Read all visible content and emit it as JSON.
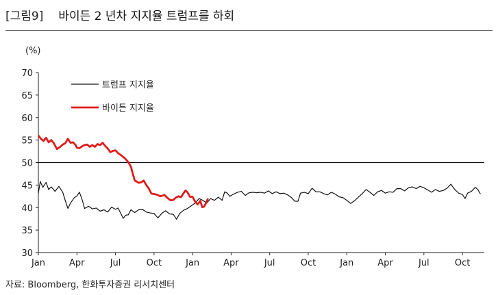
{
  "figure": {
    "label": "[그림9]",
    "title": "바이든 2 년차 지지율 트럼프를 하회",
    "source": "자료: Bloomberg, 한화투자증권 리서치센터"
  },
  "chart_data": {
    "type": "line",
    "unit_label": "(%)",
    "ylim": [
      30,
      70
    ],
    "yticks": [
      30,
      35,
      40,
      45,
      50,
      55,
      60,
      65,
      70
    ],
    "x_tick_labels": [
      "Jan",
      "Apr",
      "Jul",
      "Oct",
      "Jan",
      "Apr",
      "Jul",
      "Oct",
      "Jan",
      "Apr",
      "Jul",
      "Oct"
    ],
    "x_tick_month_index": [
      0,
      3,
      6,
      9,
      12,
      15,
      18,
      21,
      24,
      27,
      30,
      33
    ],
    "xlim_month_index": [
      0,
      34.7
    ],
    "reference_line": 50,
    "legend_position": "upper-left",
    "grid": false,
    "series": [
      {
        "name": "트럼프 지지율",
        "color": "#111111",
        "points": [
          [
            0,
            43.2
          ],
          [
            0.15,
            45.8
          ],
          [
            0.35,
            44.5
          ],
          [
            0.6,
            45.6
          ],
          [
            0.8,
            44.0
          ],
          [
            1.0,
            44.6
          ],
          [
            1.3,
            43.6
          ],
          [
            1.6,
            44.7
          ],
          [
            1.9,
            43.4
          ],
          [
            2.1,
            41.5
          ],
          [
            2.3,
            39.8
          ],
          [
            2.5,
            41.0
          ],
          [
            2.8,
            42.2
          ],
          [
            3.0,
            42.6
          ],
          [
            3.2,
            43.4
          ],
          [
            3.4,
            41.8
          ],
          [
            3.6,
            39.8
          ],
          [
            3.9,
            40.3
          ],
          [
            4.2,
            39.7
          ],
          [
            4.5,
            39.9
          ],
          [
            4.8,
            39.2
          ],
          [
            5.1,
            39.5
          ],
          [
            5.4,
            39.0
          ],
          [
            5.7,
            40.1
          ],
          [
            6.0,
            39.6
          ],
          [
            6.2,
            39.9
          ],
          [
            6.45,
            38.5
          ],
          [
            6.6,
            37.6
          ],
          [
            6.8,
            38.3
          ],
          [
            7.0,
            38.4
          ],
          [
            7.2,
            39.5
          ],
          [
            7.5,
            38.9
          ],
          [
            7.8,
            39.5
          ],
          [
            8.1,
            39.6
          ],
          [
            8.4,
            39.0
          ],
          [
            8.7,
            38.8
          ],
          [
            9.0,
            38.7
          ],
          [
            9.3,
            37.7
          ],
          [
            9.6,
            38.7
          ],
          [
            9.9,
            39.3
          ],
          [
            10.2,
            38.6
          ],
          [
            10.5,
            38.5
          ],
          [
            10.75,
            37.4
          ],
          [
            11.0,
            38.7
          ],
          [
            11.3,
            39.4
          ],
          [
            11.6,
            39.8
          ],
          [
            11.9,
            40.4
          ],
          [
            12.2,
            41.0
          ],
          [
            12.5,
            42.0
          ],
          [
            12.8,
            41.6
          ],
          [
            13.1,
            41.0
          ],
          [
            13.4,
            42.0
          ],
          [
            13.7,
            41.6
          ],
          [
            14.0,
            42.3
          ],
          [
            14.3,
            41.6
          ],
          [
            14.5,
            43.5
          ],
          [
            14.7,
            43.2
          ],
          [
            14.9,
            42.5
          ],
          [
            15.2,
            43.0
          ],
          [
            15.5,
            43.4
          ],
          [
            15.8,
            43.6
          ],
          [
            16.1,
            42.7
          ],
          [
            16.4,
            43.3
          ],
          [
            16.7,
            43.4
          ],
          [
            17.0,
            43.3
          ],
          [
            17.3,
            43.4
          ],
          [
            17.6,
            43.2
          ],
          [
            17.9,
            43.7
          ],
          [
            18.2,
            43.1
          ],
          [
            18.5,
            43.5
          ],
          [
            18.8,
            43.1
          ],
          [
            19.1,
            43.2
          ],
          [
            19.4,
            42.8
          ],
          [
            19.7,
            42.2
          ],
          [
            19.95,
            41.4
          ],
          [
            20.2,
            41.4
          ],
          [
            20.4,
            43.2
          ],
          [
            20.7,
            43.4
          ],
          [
            21.0,
            43.1
          ],
          [
            21.3,
            44.3
          ],
          [
            21.6,
            43.5
          ],
          [
            21.9,
            43.5
          ],
          [
            22.2,
            43.1
          ],
          [
            22.5,
            42.8
          ],
          [
            22.8,
            43.4
          ],
          [
            23.1,
            43.0
          ],
          [
            23.4,
            42.4
          ],
          [
            23.7,
            42.2
          ],
          [
            24.0,
            41.6
          ],
          [
            24.3,
            40.9
          ],
          [
            24.6,
            41.5
          ],
          [
            24.9,
            42.3
          ],
          [
            25.2,
            43.1
          ],
          [
            25.5,
            44.0
          ],
          [
            25.8,
            43.4
          ],
          [
            26.1,
            42.7
          ],
          [
            26.4,
            43.5
          ],
          [
            26.7,
            43.8
          ],
          [
            27.0,
            43.2
          ],
          [
            27.3,
            43.5
          ],
          [
            27.6,
            43.4
          ],
          [
            27.9,
            44.2
          ],
          [
            28.2,
            44.2
          ],
          [
            28.5,
            43.7
          ],
          [
            28.8,
            44.4
          ],
          [
            29.1,
            44.6
          ],
          [
            29.4,
            44.2
          ],
          [
            29.7,
            44.7
          ],
          [
            30.0,
            44.4
          ],
          [
            30.3,
            43.9
          ],
          [
            30.6,
            43.4
          ],
          [
            30.9,
            44.0
          ],
          [
            31.2,
            43.6
          ],
          [
            31.5,
            43.8
          ],
          [
            31.8,
            44.3
          ],
          [
            32.1,
            45.2
          ],
          [
            32.4,
            44.0
          ],
          [
            32.7,
            43.2
          ],
          [
            33.0,
            42.9
          ],
          [
            33.2,
            42.0
          ],
          [
            33.4,
            43.2
          ],
          [
            33.7,
            43.6
          ],
          [
            34.0,
            44.5
          ],
          [
            34.2,
            44.0
          ],
          [
            34.4,
            43.0
          ]
        ]
      },
      {
        "name": "바이든 지지율",
        "color": "#e01b1b",
        "points": [
          [
            0,
            56.0
          ],
          [
            0.2,
            55.3
          ],
          [
            0.4,
            54.8
          ],
          [
            0.6,
            55.5
          ],
          [
            0.8,
            54.5
          ],
          [
            1.0,
            55.0
          ],
          [
            1.2,
            54.3
          ],
          [
            1.45,
            53.0
          ],
          [
            1.7,
            53.5
          ],
          [
            1.9,
            54.0
          ],
          [
            2.1,
            54.3
          ],
          [
            2.3,
            55.3
          ],
          [
            2.5,
            54.4
          ],
          [
            2.7,
            54.5
          ],
          [
            2.9,
            53.9
          ],
          [
            3.0,
            53.3
          ],
          [
            3.2,
            53.2
          ],
          [
            3.4,
            53.6
          ],
          [
            3.6,
            53.9
          ],
          [
            3.8,
            54.0
          ],
          [
            4.0,
            53.5
          ],
          [
            4.2,
            53.9
          ],
          [
            4.4,
            53.5
          ],
          [
            4.6,
            54.1
          ],
          [
            4.8,
            53.9
          ],
          [
            5.0,
            54.4
          ],
          [
            5.2,
            53.7
          ],
          [
            5.4,
            53.1
          ],
          [
            5.6,
            52.3
          ],
          [
            5.8,
            52.6
          ],
          [
            6.0,
            52.7
          ],
          [
            6.2,
            52.1
          ],
          [
            6.5,
            51.5
          ],
          [
            6.75,
            50.9
          ],
          [
            7.0,
            50.1
          ],
          [
            7.2,
            49.1
          ],
          [
            7.35,
            47.5
          ],
          [
            7.5,
            46.0
          ],
          [
            7.65,
            45.8
          ],
          [
            7.8,
            45.5
          ],
          [
            8.0,
            45.6
          ],
          [
            8.2,
            46.0
          ],
          [
            8.4,
            45.0
          ],
          [
            8.6,
            44.2
          ],
          [
            8.8,
            43.1
          ],
          [
            9.0,
            43.0
          ],
          [
            9.2,
            42.9
          ],
          [
            9.5,
            42.5
          ],
          [
            9.8,
            42.8
          ],
          [
            10.1,
            42.0
          ],
          [
            10.3,
            41.6
          ],
          [
            10.5,
            41.7
          ],
          [
            10.7,
            42.2
          ],
          [
            10.9,
            42.5
          ],
          [
            11.1,
            42.3
          ],
          [
            11.3,
            43.2
          ],
          [
            11.45,
            43.8
          ],
          [
            11.6,
            43.4
          ],
          [
            11.8,
            42.4
          ],
          [
            12.0,
            42.4
          ],
          [
            12.2,
            41.3
          ],
          [
            12.4,
            40.7
          ],
          [
            12.6,
            41.5
          ],
          [
            12.75,
            40.1
          ],
          [
            12.9,
            40.2
          ],
          [
            13.05,
            41.0
          ],
          [
            13.2,
            42.0
          ]
        ]
      }
    ]
  }
}
